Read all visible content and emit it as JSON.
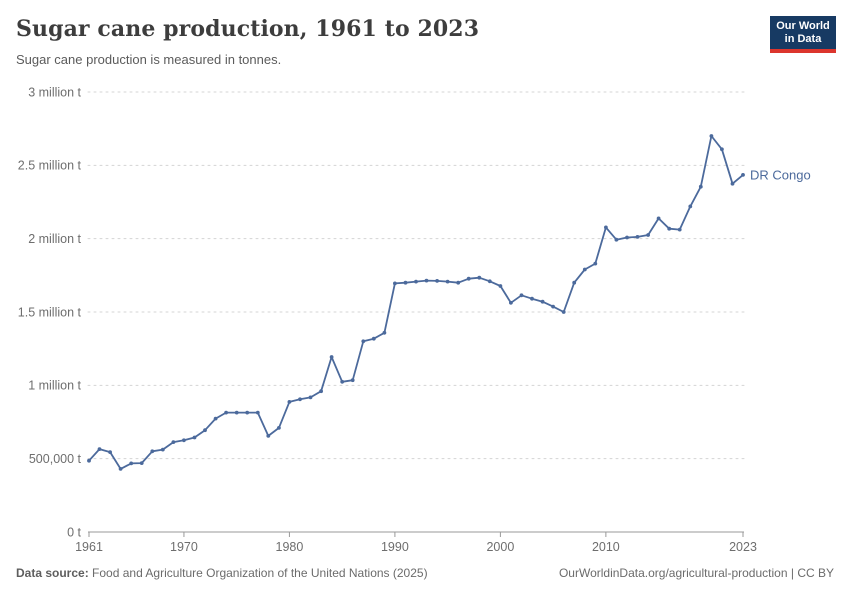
{
  "header": {
    "title": "Sugar cane production, 1961 to 2023",
    "subtitle": "Sugar cane production is measured in tonnes.",
    "logo": {
      "line1": "Our World",
      "line2": "in Data"
    }
  },
  "chart_data": {
    "type": "line",
    "title": "Sugar cane production, 1961 to 2023",
    "ylabel": "",
    "xlabel": "",
    "unit": "tonnes",
    "grid": true,
    "legend_position": "end-of-line",
    "ylim": [
      0,
      3000000
    ],
    "yticks": [
      {
        "value": 0,
        "label": "0 t"
      },
      {
        "value": 500000,
        "label": "500,000 t"
      },
      {
        "value": 1000000,
        "label": "1 million t"
      },
      {
        "value": 1500000,
        "label": "1.5 million t"
      },
      {
        "value": 2000000,
        "label": "2 million t"
      },
      {
        "value": 2500000,
        "label": "2.5 million t"
      },
      {
        "value": 3000000,
        "label": "3 million t"
      }
    ],
    "xticks": [
      1961,
      1970,
      1980,
      1990,
      2000,
      2010,
      2023
    ],
    "x": [
      1961,
      1962,
      1963,
      1964,
      1965,
      1966,
      1967,
      1968,
      1969,
      1970,
      1971,
      1972,
      1973,
      1974,
      1975,
      1976,
      1977,
      1978,
      1979,
      1980,
      1981,
      1982,
      1983,
      1984,
      1985,
      1986,
      1987,
      1988,
      1989,
      1990,
      1991,
      1992,
      1993,
      1994,
      1995,
      1996,
      1997,
      1998,
      1999,
      2000,
      2001,
      2002,
      2003,
      2004,
      2005,
      2006,
      2007,
      2008,
      2009,
      2010,
      2011,
      2012,
      2013,
      2014,
      2015,
      2016,
      2017,
      2018,
      2019,
      2020,
      2021,
      2022,
      2023
    ],
    "series": [
      {
        "name": "DR Congo",
        "color": "#4C6A9C",
        "values": [
          486000,
          565000,
          545000,
          430000,
          468000,
          470000,
          550000,
          562000,
          613000,
          625000,
          644000,
          694000,
          773000,
          814000,
          814000,
          814000,
          814000,
          655000,
          710000,
          887000,
          905000,
          918000,
          960000,
          1193000,
          1024000,
          1035000,
          1300000,
          1318000,
          1358000,
          1695000,
          1700000,
          1707000,
          1714000,
          1712000,
          1707000,
          1700000,
          1727000,
          1734000,
          1709000,
          1677000,
          1563000,
          1614000,
          1591000,
          1570000,
          1537000,
          1500000,
          1700000,
          1790000,
          1830000,
          2077000,
          1993000,
          2008000,
          2012000,
          2025000,
          2138000,
          2068000,
          2062000,
          2220000,
          2354000,
          2700000,
          2609000,
          2375000,
          2435000
        ]
      }
    ],
    "style": {
      "gridline_color": "#d4d4d4",
      "axis_color": "#999999",
      "tick_label_color": "#6e6e6e",
      "background": "#ffffff"
    }
  },
  "footer": {
    "datasource_label": "Data source:",
    "datasource": "Food and Agriculture Organization of the United Nations (2025)",
    "link": "OurWorldinData.org/agricultural-production",
    "separator": " | ",
    "license": "CC BY"
  }
}
